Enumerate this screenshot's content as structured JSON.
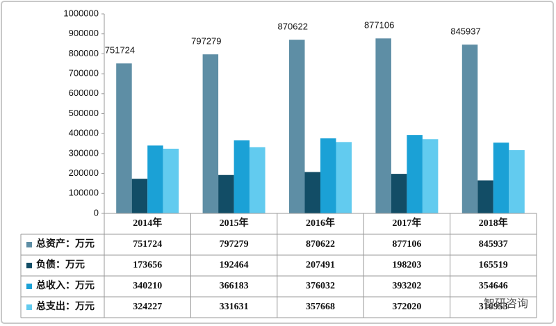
{
  "chart_data": {
    "type": "bar",
    "categories": [
      "2014年",
      "2015年",
      "2016年",
      "2017年",
      "2018年"
    ],
    "series": [
      {
        "name": "总资产：万元",
        "color": "#5e8ea5",
        "values": [
          751724,
          797279,
          870622,
          877106,
          845937
        ]
      },
      {
        "name": "负债：万元",
        "color": "#124d66",
        "values": [
          173656,
          192464,
          207491,
          198203,
          165519
        ]
      },
      {
        "name": "总收入：万元",
        "color": "#1ba1d6",
        "values": [
          340210,
          366183,
          376032,
          393202,
          354646
        ]
      },
      {
        "name": "总支出：万元",
        "color": "#62cbef",
        "values": [
          324227,
          331631,
          357668,
          372020,
          316953
        ]
      }
    ],
    "labeled_series": 0,
    "ylim": [
      0,
      1000000
    ],
    "yticks": [
      0,
      100000,
      200000,
      300000,
      400000,
      500000,
      600000,
      700000,
      800000,
      900000,
      1000000
    ],
    "grid": false,
    "watermark": "智研咨询"
  }
}
